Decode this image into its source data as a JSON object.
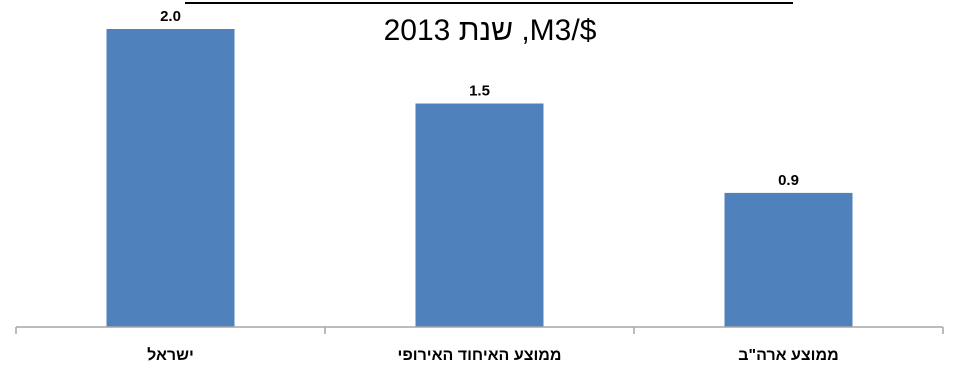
{
  "chart_data": {
    "type": "bar",
    "title": "$/M3, שנת 2013",
    "categories": [
      "ישראל",
      "ממוצע האיחוד האירופי",
      "ממוצע ארה\"ב"
    ],
    "values": [
      2.0,
      1.5,
      0.9
    ],
    "value_labels": [
      "2.0",
      "1.5",
      "0.9"
    ],
    "xlabel": "",
    "ylabel": "",
    "ylim": [
      0,
      2.0
    ],
    "grid": false,
    "legend": "none",
    "bar_color": "#4F81BD",
    "axis_color": "#A6A6A6"
  }
}
